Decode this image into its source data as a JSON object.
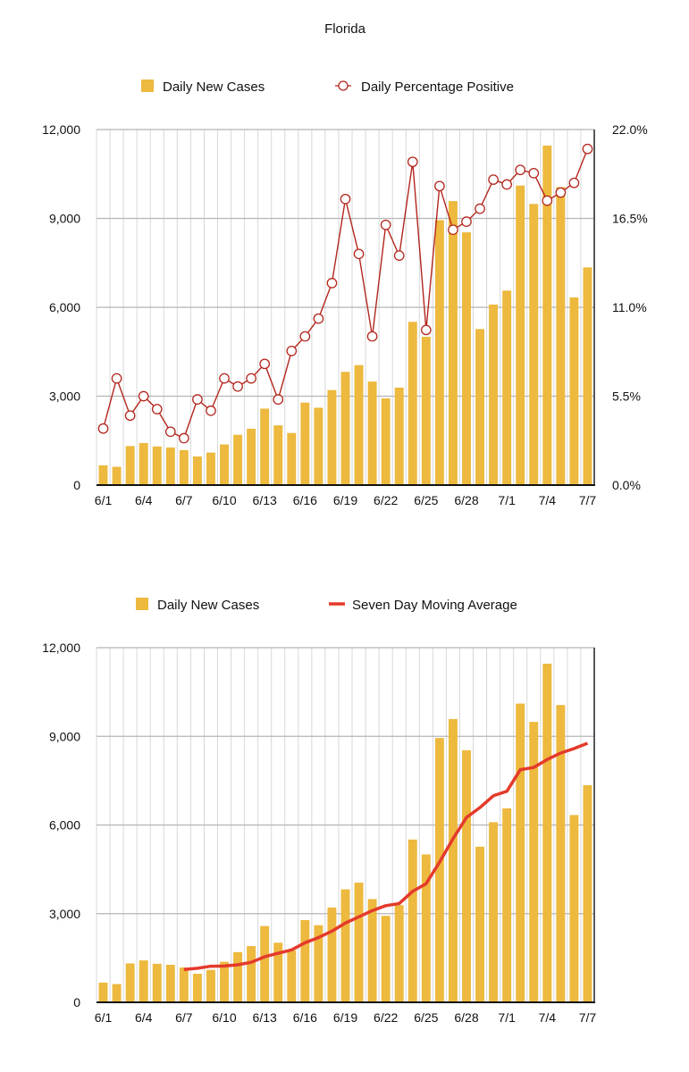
{
  "title": "Florida",
  "colors": {
    "bar": "#EDB93E",
    "pct_line": "#B3261E",
    "ma_line": "#E43A2B",
    "grid": "#B5B5B5",
    "vgrid": "#D8D8D8"
  },
  "chart_data": [
    {
      "type": "bar+line",
      "title": "Florida",
      "legend": [
        "Daily New Cases",
        "Daily Percentage Positive"
      ],
      "legend_placement": "top",
      "categories": [
        "6/1",
        "6/2",
        "6/3",
        "6/4",
        "6/5",
        "6/6",
        "6/7",
        "6/8",
        "6/9",
        "6/10",
        "6/11",
        "6/12",
        "6/13",
        "6/14",
        "6/15",
        "6/16",
        "6/17",
        "6/18",
        "6/19",
        "6/20",
        "6/21",
        "6/22",
        "6/23",
        "6/24",
        "6/25",
        "6/26",
        "6/27",
        "6/28",
        "6/29",
        "6/30",
        "7/1",
        "7/2",
        "7/3",
        "7/4",
        "7/5",
        "7/6",
        "7/7"
      ],
      "x_tick_labels": [
        "6/1",
        "6/4",
        "6/7",
        "6/10",
        "6/13",
        "6/16",
        "6/19",
        "6/22",
        "6/25",
        "6/28",
        "7/1",
        "7/4",
        "7/7"
      ],
      "series": [
        {
          "name": "Daily New Cases",
          "axis": "left",
          "type": "bar",
          "values": [
            667,
            617,
            1317,
            1419,
            1305,
            1270,
            1180,
            966,
            1096,
            1371,
            1698,
            1902,
            2581,
            2016,
            1758,
            2783,
            2610,
            3207,
            3822,
            4049,
            3494,
            2926,
            3289,
            5508,
            5004,
            8942,
            9585,
            8530,
            5266,
            6093,
            6563,
            10109,
            9488,
            11458,
            10059,
            6336,
            7347
          ]
        },
        {
          "name": "Daily Percentage Positive",
          "axis": "right",
          "type": "line",
          "values": [
            3.5,
            6.6,
            4.3,
            5.5,
            4.7,
            3.3,
            2.9,
            5.3,
            4.6,
            6.6,
            6.1,
            6.6,
            7.5,
            5.3,
            8.3,
            9.2,
            10.3,
            12.5,
            17.7,
            14.3,
            9.2,
            16.1,
            14.2,
            20.0,
            9.6,
            18.5,
            15.8,
            16.3,
            17.1,
            18.9,
            18.6,
            19.5,
            19.3,
            17.6,
            18.1,
            18.7,
            20.8
          ]
        }
      ],
      "ylim_left": [
        0,
        12000
      ],
      "ylim_right": [
        0,
        22
      ],
      "y_tick_labels_left": [
        "0",
        "3,000",
        "6,000",
        "9,000",
        "12,000"
      ],
      "y_tick_labels_right": [
        "0.0%",
        "5.5%",
        "11.0%",
        "16.5%",
        "22.0%"
      ],
      "grid": true
    },
    {
      "type": "bar+line",
      "legend": [
        "Daily New Cases",
        "Seven Day Moving Average"
      ],
      "legend_placement": "top",
      "moving_average_window": 7,
      "ylim": [
        0,
        12000
      ],
      "y_tick_labels": [
        "0",
        "3,000",
        "6,000",
        "9,000",
        "12,000"
      ],
      "x_tick_labels": [
        "6/1",
        "6/4",
        "6/7",
        "6/10",
        "6/13",
        "6/16",
        "6/19",
        "6/22",
        "6/25",
        "6/28",
        "7/1",
        "7/4",
        "7/7"
      ],
      "grid": true
    }
  ]
}
